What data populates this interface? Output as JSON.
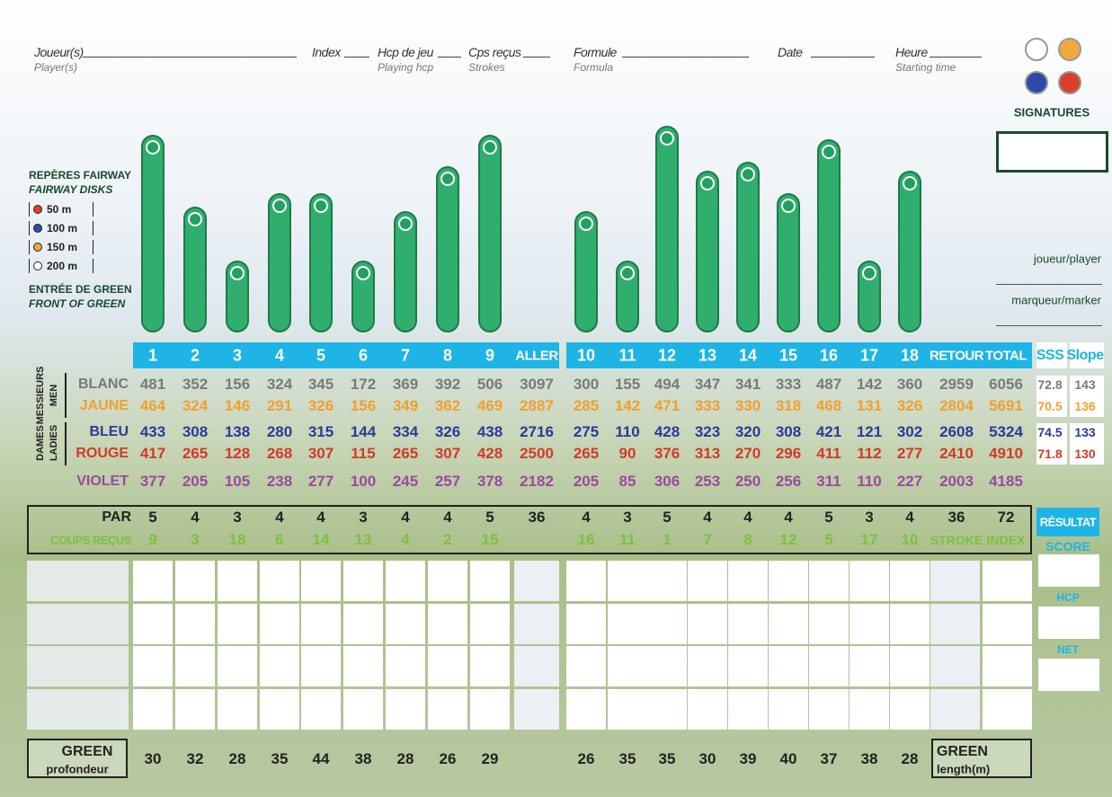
{
  "header": {
    "fields": [
      {
        "label": "Joueur(s)",
        "sublabel": "Player(s)"
      },
      {
        "label": "Index"
      },
      {
        "label": "Hcp de jeu",
        "sublabel": "Playing hcp"
      },
      {
        "label": "Cps reçus",
        "sublabel": "Strokes"
      },
      {
        "label": "Formule",
        "sublabel": "Formula"
      },
      {
        "label": "Date"
      },
      {
        "label": "Heure",
        "sublabel": "Starting time"
      }
    ]
  },
  "signatures": {
    "title": "SIGNATURES",
    "player": "joueur/player",
    "marker": "marqueur/marker"
  },
  "legend": {
    "title": "REPÈRES FAIRWAY",
    "subtitle": "FAIRWAY DISKS",
    "disks": [
      {
        "label": "50 m",
        "color": "#d9402b"
      },
      {
        "label": "100 m",
        "color": "#2c4aa8"
      },
      {
        "label": "150 m",
        "color": "#f2a93b"
      },
      {
        "label": "200 m",
        "color": "#ffffff"
      }
    ],
    "green_title": "ENTRÉE DE GREEN",
    "green_subtitle": "FRONT OF GREEN"
  },
  "table": {
    "columns": [
      "1",
      "2",
      "3",
      "4",
      "5",
      "6",
      "7",
      "8",
      "9",
      "ALLER",
      "10",
      "11",
      "12",
      "13",
      "14",
      "15",
      "16",
      "17",
      "18",
      "RETOUR",
      "TOTAL",
      "SSS",
      "Slope"
    ],
    "groups": [
      {
        "label": "MESSIEURS",
        "sublabel": "MEN"
      },
      {
        "label": "DAMES",
        "sublabel": "LADIES"
      }
    ],
    "tees": [
      {
        "name": "BLANC",
        "color": "#7a7a7a",
        "values": [
          481,
          352,
          156,
          324,
          345,
          172,
          369,
          392,
          506,
          3097,
          300,
          155,
          494,
          347,
          341,
          333,
          487,
          142,
          360,
          2959,
          6056,
          72.8,
          143
        ]
      },
      {
        "name": "JAUNE",
        "color": "#f0a030",
        "values": [
          464,
          324,
          146,
          291,
          326,
          156,
          349,
          362,
          469,
          2887,
          285,
          142,
          471,
          333,
          330,
          318,
          468,
          131,
          326,
          2804,
          5691,
          70.5,
          136
        ]
      },
      {
        "name": "BLEU",
        "color": "#2b3a9a",
        "values": [
          433,
          308,
          138,
          280,
          315,
          144,
          334,
          326,
          438,
          2716,
          275,
          110,
          428,
          323,
          320,
          308,
          421,
          121,
          302,
          2608,
          5324,
          74.5,
          133
        ]
      },
      {
        "name": "ROUGE",
        "color": "#d03a2a",
        "values": [
          417,
          265,
          128,
          268,
          307,
          115,
          265,
          307,
          428,
          2500,
          265,
          90,
          376,
          313,
          270,
          296,
          411,
          112,
          277,
          2410,
          4910,
          71.8,
          130
        ]
      },
      {
        "name": "VIOLET",
        "color": "#9a4aa0",
        "values": [
          377,
          205,
          105,
          238,
          277,
          100,
          245,
          257,
          378,
          2182,
          205,
          85,
          306,
          253,
          250,
          256,
          311,
          110,
          227,
          2003,
          4185
        ]
      }
    ],
    "par": {
      "label": "PAR",
      "values": [
        5,
        4,
        3,
        4,
        4,
        3,
        4,
        4,
        5,
        36,
        4,
        3,
        5,
        4,
        4,
        4,
        5,
        3,
        4,
        36,
        72
      ]
    },
    "strokes": {
      "label": "COUPS REÇUS",
      "values": [
        9,
        3,
        18,
        6,
        14,
        13,
        4,
        2,
        15,
        null,
        16,
        11,
        1,
        7,
        8,
        12,
        5,
        17,
        10,
        "STROKE",
        "INDEX"
      ]
    }
  },
  "result": {
    "title": "RÉSULTAT",
    "rows": [
      "SCORE",
      "HCP",
      "NET"
    ]
  },
  "green": {
    "left_title": "GREEN",
    "left_subtitle": "profondeur",
    "right_title": "GREEN",
    "right_subtitle": "length(m)",
    "values": [
      30,
      32,
      28,
      35,
      44,
      38,
      28,
      26,
      29,
      null,
      26,
      35,
      35,
      30,
      39,
      40,
      37,
      38,
      28
    ]
  }
}
